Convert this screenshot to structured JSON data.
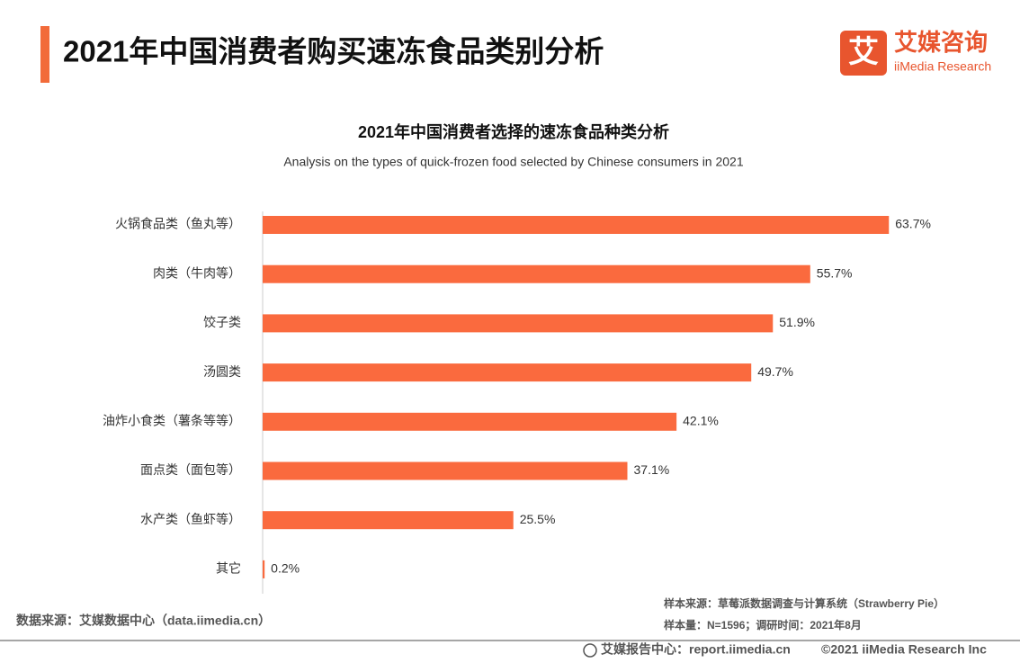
{
  "header": {
    "title": "2021年中国消费者购买速冻食品类别分析"
  },
  "logo": {
    "icon": "艾",
    "name": "艾媒咨询",
    "subname": "iiMedia Research"
  },
  "chart_data": {
    "type": "hbar",
    "title": "2021年中国消费者选择的速冻食品种类分析",
    "subtitle": "Analysis on the types of quick-frozen food selected by Chinese consumers in 2021",
    "categories": [
      "火锅食品类（鱼丸等）",
      "肉类（牛肉等）",
      "饺子类",
      "汤圆类",
      "油炸小食类（薯条等等）",
      "面点类（面包等）",
      "水产类（鱼虾等）",
      "其它"
    ],
    "values": [
      63.7,
      55.7,
      51.9,
      49.7,
      42.1,
      37.1,
      25.5,
      0.2
    ],
    "value_labels": [
      "63.7%",
      "55.7%",
      "51.9%",
      "49.7%",
      "42.1%",
      "37.1%",
      "25.5%",
      "0.2%"
    ],
    "color": "#fa6a3e"
  },
  "footer": {
    "data_source": "数据来源：艾媒数据中心（data.iimedia.cn）",
    "sample_source": "样本来源：草莓派数据调查与计算系统（Strawberry Pie）",
    "sample_size": "样本量：N=1596；调研时间：2021年8月",
    "report_center": "艾媒报告中心：report.iimedia.cn",
    "copyright": "©2021  iiMedia Research  Inc"
  }
}
